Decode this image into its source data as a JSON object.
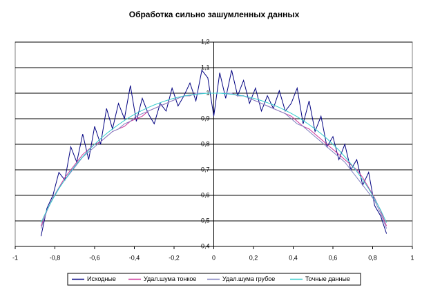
{
  "chart_data": {
    "type": "line",
    "title": "Обработка сильно зашумленных данных",
    "x": [
      -0.87,
      -0.84,
      -0.81,
      -0.78,
      -0.75,
      -0.72,
      -0.69,
      -0.66,
      -0.63,
      -0.6,
      -0.57,
      -0.54,
      -0.51,
      -0.48,
      -0.45,
      -0.42,
      -0.39,
      -0.36,
      -0.33,
      -0.3,
      -0.27,
      -0.24,
      -0.21,
      -0.18,
      -0.15,
      -0.12,
      -0.09,
      -0.06,
      -0.03,
      0,
      0.03,
      0.06,
      0.09,
      0.12,
      0.15,
      0.18,
      0.21,
      0.24,
      0.27,
      0.3,
      0.33,
      0.36,
      0.39,
      0.42,
      0.45,
      0.48,
      0.51,
      0.54,
      0.57,
      0.6,
      0.63,
      0.66,
      0.69,
      0.72,
      0.75,
      0.78,
      0.81,
      0.84,
      0.87
    ],
    "series": [
      {
        "name": "Исходные",
        "color": "#000080",
        "values": [
          0.44,
          0.55,
          0.6,
          0.69,
          0.66,
          0.79,
          0.73,
          0.84,
          0.74,
          0.87,
          0.8,
          0.94,
          0.86,
          0.96,
          0.9,
          1.03,
          0.89,
          0.98,
          0.92,
          0.88,
          0.96,
          0.93,
          1.02,
          0.95,
          0.99,
          1.04,
          0.97,
          1.09,
          1.06,
          0.91,
          1.08,
          0.98,
          1.09,
          0.99,
          1.05,
          0.96,
          1.02,
          0.93,
          0.99,
          0.94,
          1.01,
          0.93,
          0.96,
          1.02,
          0.88,
          0.97,
          0.85,
          0.91,
          0.79,
          0.83,
          0.74,
          0.8,
          0.7,
          0.74,
          0.64,
          0.69,
          0.56,
          0.52,
          0.45
        ]
      },
      {
        "name": "Удал.шума тонкое",
        "color": "#cc3399",
        "values": [
          0.48,
          0.54,
          0.59,
          0.63,
          0.67,
          0.7,
          0.73,
          0.76,
          0.78,
          0.8,
          0.81,
          0.83,
          0.85,
          0.86,
          0.87,
          0.89,
          0.9,
          0.91,
          0.93,
          0.94,
          0.95,
          0.96,
          0.97,
          0.98,
          0.99,
          0.99,
          1,
          1,
          1,
          1,
          1,
          1,
          1,
          0.99,
          0.99,
          0.98,
          0.97,
          0.96,
          0.95,
          0.94,
          0.93,
          0.92,
          0.91,
          0.89,
          0.87,
          0.86,
          0.84,
          0.82,
          0.8,
          0.78,
          0.76,
          0.74,
          0.72,
          0.7,
          0.67,
          0.63,
          0.59,
          0.54,
          0.48
        ]
      },
      {
        "name": "Удал.шума грубое",
        "color": "#8080c0",
        "values": [
          0.47,
          0.54,
          0.59,
          0.63,
          0.66,
          0.69,
          0.72,
          0.75,
          0.77,
          0.79,
          0.81,
          0.83,
          0.85,
          0.86,
          0.88,
          0.89,
          0.91,
          0.92,
          0.93,
          0.94,
          0.95,
          0.96,
          0.97,
          0.98,
          0.99,
          0.99,
          1,
          1,
          1,
          1,
          1,
          1,
          1,
          0.99,
          0.99,
          0.98,
          0.97,
          0.96,
          0.95,
          0.94,
          0.93,
          0.92,
          0.9,
          0.88,
          0.87,
          0.85,
          0.83,
          0.81,
          0.79,
          0.77,
          0.75,
          0.73,
          0.7,
          0.67,
          0.64,
          0.61,
          0.58,
          0.53,
          0.47
        ]
      },
      {
        "name": "Точные данные",
        "color": "#33cccc",
        "values": [
          0.493,
          0.543,
          0.586,
          0.626,
          0.661,
          0.694,
          0.724,
          0.751,
          0.777,
          0.8,
          0.822,
          0.842,
          0.86,
          0.877,
          0.893,
          0.908,
          0.921,
          0.933,
          0.944,
          0.954,
          0.963,
          0.971,
          0.978,
          0.984,
          0.989,
          0.993,
          0.996,
          0.998,
          1,
          1,
          1,
          0.998,
          0.996,
          0.993,
          0.989,
          0.984,
          0.978,
          0.971,
          0.963,
          0.954,
          0.944,
          0.933,
          0.921,
          0.908,
          0.893,
          0.877,
          0.86,
          0.842,
          0.822,
          0.8,
          0.777,
          0.751,
          0.724,
          0.694,
          0.661,
          0.626,
          0.586,
          0.543,
          0.493
        ]
      }
    ],
    "xlim": [
      -1,
      1
    ],
    "xticks": [
      -1,
      {
        "value": -0.8,
        "label": "-0,8"
      },
      {
        "value": -0.6,
        "label": "-0,6"
      },
      {
        "value": -0.4,
        "label": "-0,4"
      },
      {
        "value": -0.2,
        "label": "-0,2"
      },
      0,
      {
        "value": 0.2,
        "label": "0,2"
      },
      {
        "value": 0.4,
        "label": "0,4"
      },
      {
        "value": 0.6,
        "label": "0,6"
      },
      {
        "value": 0.8,
        "label": "0,8"
      },
      1
    ],
    "ylim": [
      0.4,
      1.2
    ],
    "yticks": [
      {
        "value": 0.4,
        "label": "0,4"
      },
      {
        "value": 0.5,
        "label": "0,5"
      },
      {
        "value": 0.6,
        "label": "0,6"
      },
      {
        "value": 0.7,
        "label": "0,7"
      },
      {
        "value": 0.8,
        "label": "0,8"
      },
      {
        "value": 0.9,
        "label": "0,9"
      },
      1,
      {
        "value": 1.1,
        "label": "1,1"
      },
      {
        "value": 1.2,
        "label": "1,2"
      }
    ],
    "grid": true,
    "legend": "bottom"
  }
}
